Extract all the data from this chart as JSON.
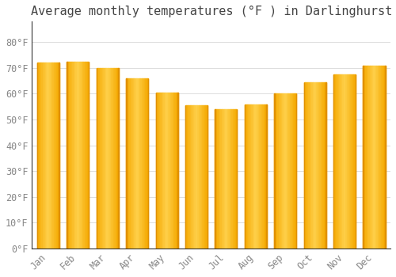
{
  "title": "Average monthly temperatures (°F ) in Darlinghurst",
  "months": [
    "Jan",
    "Feb",
    "Mar",
    "Apr",
    "May",
    "Jun",
    "Jul",
    "Aug",
    "Sep",
    "Oct",
    "Nov",
    "Dec"
  ],
  "values": [
    72,
    72.5,
    70,
    66,
    60.5,
    55.5,
    54,
    56,
    60,
    64.5,
    67.5,
    71
  ],
  "ylim": [
    0,
    88
  ],
  "yticks": [
    0,
    10,
    20,
    30,
    40,
    50,
    60,
    70,
    80
  ],
  "ytick_labels": [
    "0°F",
    "10°F",
    "20°F",
    "30°F",
    "40°F",
    "50°F",
    "60°F",
    "70°F",
    "80°F"
  ],
  "bar_color_center": "#FFD04B",
  "bar_color_edge": "#F5A800",
  "figure_bg": "#FFFFFF",
  "plot_bg": "#FFFFFF",
  "grid_color": "#DDDDDD",
  "title_fontsize": 11,
  "tick_fontsize": 8.5,
  "tick_color": "#888888",
  "spine_color": "#333333",
  "bar_width": 0.75
}
